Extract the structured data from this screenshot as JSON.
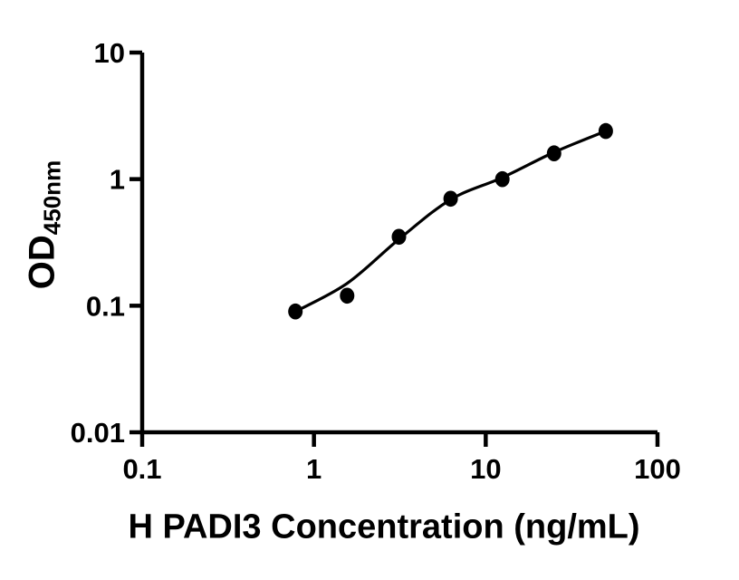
{
  "figure": {
    "background": "#ffffff",
    "ink_color": "#000000"
  },
  "chart_data": {
    "type": "scatter",
    "title": "",
    "xlabel": "H PADI3 Concentration (ng/mL)",
    "ylabel_main": "OD",
    "ylabel_subscript": "450nm",
    "x_scale": "log",
    "y_scale": "log",
    "xlim": [
      0.1,
      100
    ],
    "ylim": [
      0.01,
      10
    ],
    "x_tick_values": [
      0.1,
      1,
      10,
      100
    ],
    "x_tick_labels": [
      "0.1",
      "1",
      "10",
      "100"
    ],
    "y_tick_values": [
      10,
      1,
      0.1,
      0.01
    ],
    "y_tick_labels": [
      "10",
      "1",
      "0.1",
      "0.01"
    ],
    "grid": false,
    "legend": "none",
    "series": [
      {
        "name": "H PADI3 standard curve points",
        "marker": "filled-circle",
        "x": [
          0.78,
          1.56,
          3.125,
          6.25,
          12.5,
          25,
          50
        ],
        "od": [
          0.09,
          0.12,
          0.35,
          0.7,
          1.0,
          1.6,
          2.4
        ]
      }
    ],
    "fit_curve": {
      "name": "fitted standard curve",
      "x": [
        0.78,
        1.56,
        3.125,
        6.25,
        12.5,
        25,
        50
      ],
      "od": [
        0.09,
        0.15,
        0.335,
        0.69,
        1.03,
        1.63,
        2.4
      ]
    }
  }
}
